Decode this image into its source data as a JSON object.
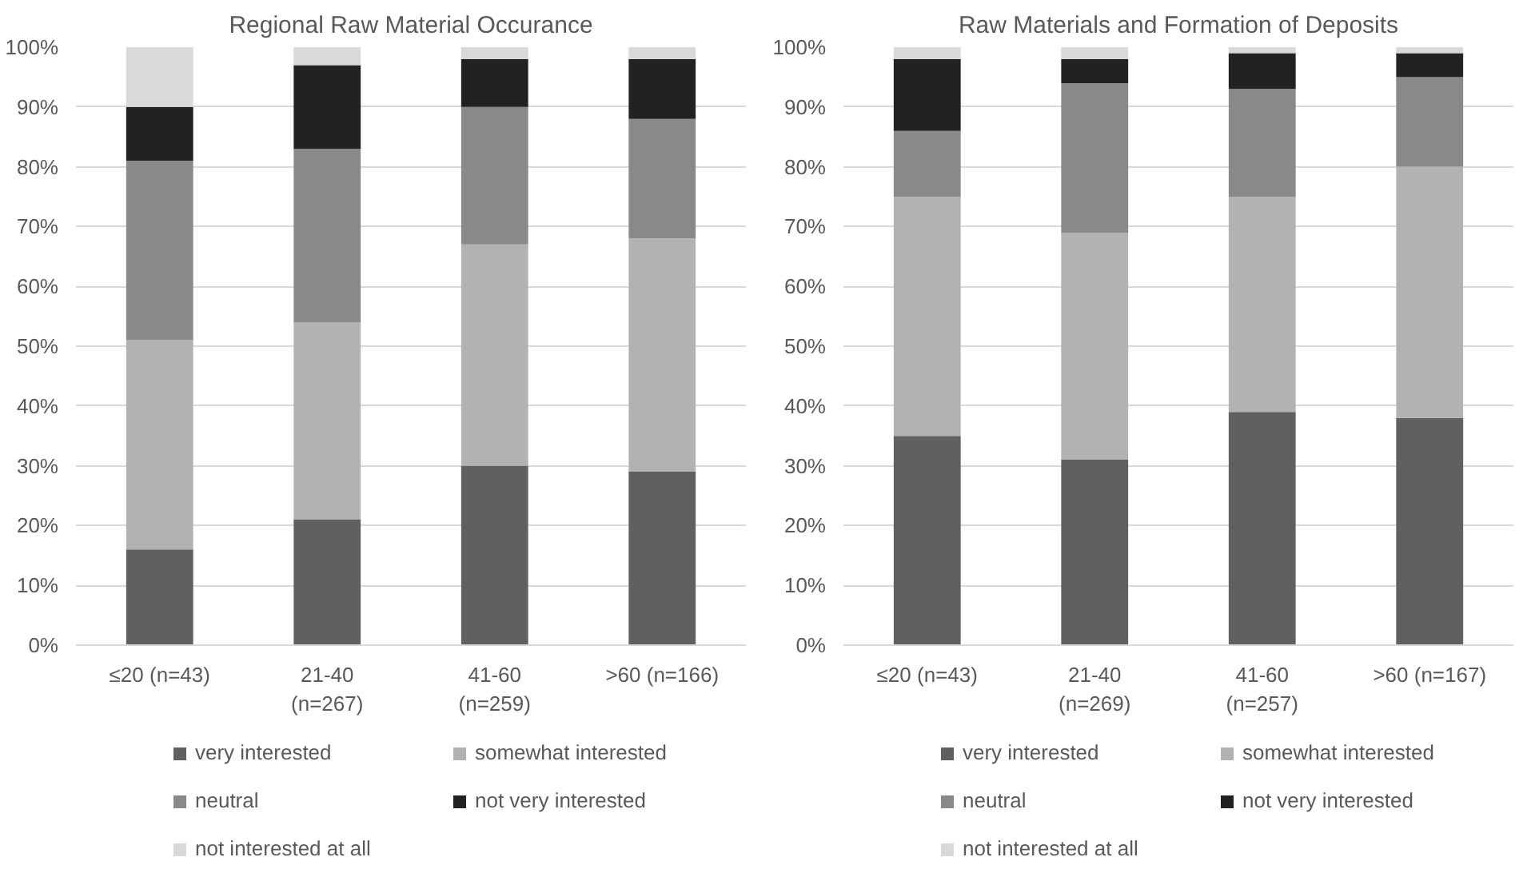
{
  "chart_data": [
    {
      "type": "bar",
      "title": "Regional Raw Material Occurance",
      "stacked": true,
      "grid": "y",
      "legend": "bottom",
      "categories": [
        "≤20 (n=43)",
        "21-40\n(n=267)",
        "41-60\n(n=259)",
        ">60 (n=166)"
      ],
      "ylim": [
        0,
        100
      ],
      "yticks": [
        {
          "value": 0,
          "label": "0%"
        },
        {
          "value": 10,
          "label": "10%"
        },
        {
          "value": 20,
          "label": "20%"
        },
        {
          "value": 30,
          "label": "30%"
        },
        {
          "value": 40,
          "label": "40%"
        },
        {
          "value": 50,
          "label": "50%"
        },
        {
          "value": 60,
          "label": "60%"
        },
        {
          "value": 70,
          "label": "70%"
        },
        {
          "value": 80,
          "label": "80%"
        },
        {
          "value": 90,
          "label": "90%"
        },
        {
          "value": 100,
          "label": "100%"
        }
      ],
      "series": [
        {
          "name": "very interested",
          "color": "#606060",
          "values": [
            16,
            21,
            30,
            29
          ]
        },
        {
          "name": "somewhat interested",
          "color": "#b2b2b2",
          "values": [
            35,
            33,
            37,
            39
          ]
        },
        {
          "name": "neutral",
          "color": "#898989",
          "values": [
            30,
            29,
            23,
            20
          ]
        },
        {
          "name": "not very interested",
          "color": "#222222",
          "values": [
            9,
            14,
            8,
            10
          ]
        },
        {
          "name": "not interested at all",
          "color": "#d9d9d9",
          "values": [
            10,
            3,
            2,
            2
          ]
        }
      ]
    },
    {
      "type": "bar",
      "title": "Raw Materials and Formation of Deposits",
      "stacked": true,
      "grid": "y",
      "legend": "bottom",
      "categories": [
        "≤20 (n=43)",
        "21-40\n(n=269)",
        "41-60\n(n=257)",
        ">60 (n=167)"
      ],
      "ylim": [
        0,
        100
      ],
      "yticks": [
        {
          "value": 0,
          "label": "0%"
        },
        {
          "value": 10,
          "label": "10%"
        },
        {
          "value": 20,
          "label": "20%"
        },
        {
          "value": 30,
          "label": "30%"
        },
        {
          "value": 40,
          "label": "40%"
        },
        {
          "value": 50,
          "label": "50%"
        },
        {
          "value": 60,
          "label": "60%"
        },
        {
          "value": 70,
          "label": "70%"
        },
        {
          "value": 80,
          "label": "80%"
        },
        {
          "value": 90,
          "label": "90%"
        },
        {
          "value": 100,
          "label": "100%"
        }
      ],
      "series": [
        {
          "name": "very interested",
          "color": "#606060",
          "values": [
            35,
            31,
            39,
            38
          ]
        },
        {
          "name": "somewhat interested",
          "color": "#b2b2b2",
          "values": [
            40,
            38,
            36,
            42
          ]
        },
        {
          "name": "neutral",
          "color": "#898989",
          "values": [
            11,
            25,
            18,
            15
          ]
        },
        {
          "name": "not very interested",
          "color": "#222222",
          "values": [
            12,
            4,
            6,
            4
          ]
        },
        {
          "name": "not interested at all",
          "color": "#d9d9d9",
          "values": [
            2,
            2,
            1,
            1
          ]
        }
      ]
    }
  ]
}
